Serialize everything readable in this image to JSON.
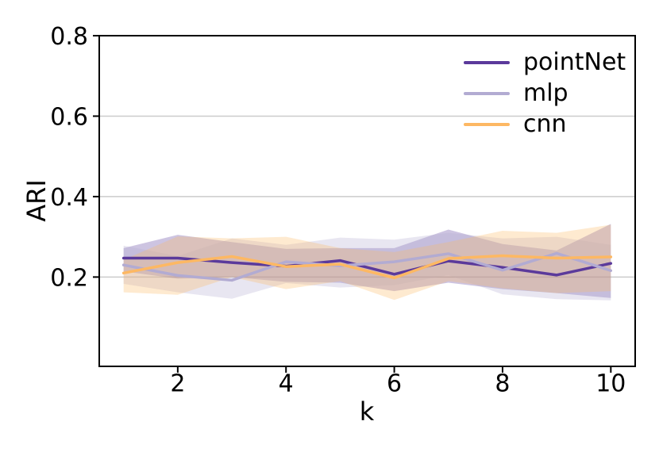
{
  "figure": {
    "background": "#ffffff"
  },
  "chart_data": {
    "type": "line",
    "title": "",
    "xlabel": "k",
    "ylabel": "ARI",
    "x": [
      1,
      2,
      3,
      4,
      5,
      6,
      7,
      8,
      9,
      10
    ],
    "xticks": [
      2,
      4,
      6,
      8,
      10
    ],
    "yticks": [
      0.2,
      0.4,
      0.6,
      0.8
    ],
    "ytick_labels": [
      "0.2",
      "0.4",
      "0.6",
      "0.8"
    ],
    "xlim": [
      0.55,
      10.45
    ],
    "ylim": [
      -0.022,
      0.8
    ],
    "grid": "horizontal",
    "grid_color": "#cccccc",
    "axis_color": "#000000",
    "legend_position": "upper right",
    "band_alpha": 0.3,
    "series": [
      {
        "name": "pointNet",
        "color": "#5b3a9b",
        "values": [
          0.247,
          0.247,
          0.236,
          0.227,
          0.241,
          0.207,
          0.24,
          0.224,
          0.205,
          0.234
        ],
        "band_upper": [
          0.272,
          0.305,
          0.287,
          0.27,
          0.272,
          0.272,
          0.318,
          0.282,
          0.266,
          0.332
        ],
        "band_lower": [
          0.214,
          0.196,
          0.2,
          0.188,
          0.186,
          0.165,
          0.186,
          0.17,
          0.16,
          0.148
        ]
      },
      {
        "name": "mlp",
        "color": "#b2abd2",
        "values": [
          0.23,
          0.204,
          0.192,
          0.238,
          0.228,
          0.238,
          0.258,
          0.217,
          0.259,
          0.216
        ],
        "band_upper": [
          0.278,
          0.252,
          0.296,
          0.28,
          0.298,
          0.293,
          0.31,
          0.296,
          0.3,
          0.28
        ],
        "band_lower": [
          0.183,
          0.162,
          0.146,
          0.185,
          0.174,
          0.18,
          0.205,
          0.157,
          0.145,
          0.142
        ]
      },
      {
        "name": "cnn",
        "color": "#fdb863",
        "values": [
          0.21,
          0.236,
          0.251,
          0.226,
          0.232,
          0.198,
          0.246,
          0.253,
          0.247,
          0.25
        ],
        "band_upper": [
          0.243,
          0.301,
          0.296,
          0.3,
          0.272,
          0.262,
          0.287,
          0.315,
          0.31,
          0.33
        ],
        "band_lower": [
          0.162,
          0.156,
          0.2,
          0.17,
          0.19,
          0.143,
          0.19,
          0.172,
          0.16,
          0.165
        ]
      }
    ]
  }
}
